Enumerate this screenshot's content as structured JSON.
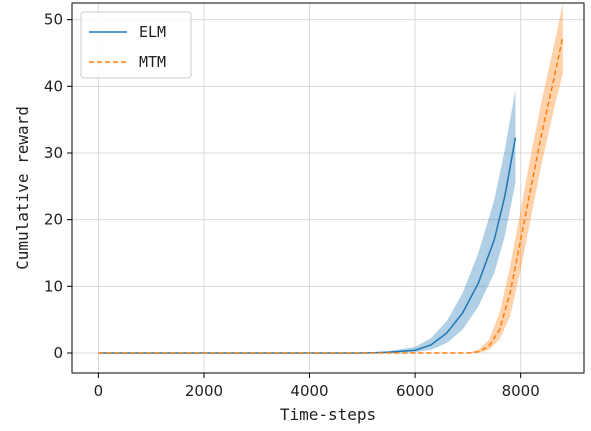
{
  "chart_data": {
    "type": "line",
    "title": "",
    "xlabel": "Time-steps",
    "ylabel": "Cumulative reward",
    "xlim": [
      -500,
      9200
    ],
    "ylim": [
      -3,
      52.5
    ],
    "xticks": [
      0,
      2000,
      4000,
      6000,
      8000
    ],
    "yticks": [
      0,
      10,
      20,
      30,
      40,
      50
    ],
    "grid": true,
    "legend": "top-left",
    "series": [
      {
        "name": "ELM",
        "color": "#1f77b4",
        "linestyle": "solid",
        "x": [
          0,
          5000,
          5500,
          6000,
          6300,
          6600,
          6900,
          7200,
          7500,
          7700,
          7900
        ],
        "y": [
          0,
          0,
          0.1,
          0.4,
          1.2,
          3,
          6,
          10.5,
          17,
          23.5,
          32.3
        ],
        "lower": [
          0,
          0,
          0,
          0.1,
          0.5,
          1.5,
          3.5,
          7,
          12,
          17.5,
          25.5
        ],
        "upper": [
          0,
          0,
          0.3,
          0.9,
          2.2,
          4.8,
          9,
          15,
          23,
          30.5,
          39.5
        ]
      },
      {
        "name": "MTM",
        "color": "#ff7f0e",
        "linestyle": "dashed",
        "x": [
          0,
          7000,
          7200,
          7400,
          7600,
          7800,
          8000,
          8200,
          8400,
          8600,
          8800
        ],
        "y": [
          0,
          0,
          0.2,
          1,
          3.5,
          9,
          17,
          25,
          33,
          40,
          47.5
        ],
        "lower": [
          0,
          0,
          0,
          0.5,
          2,
          5.5,
          12.5,
          20.5,
          28.5,
          35.5,
          42
        ],
        "upper": [
          0,
          0,
          0.5,
          2,
          6,
          13,
          21.5,
          30,
          38,
          45,
          52.5
        ]
      }
    ]
  }
}
